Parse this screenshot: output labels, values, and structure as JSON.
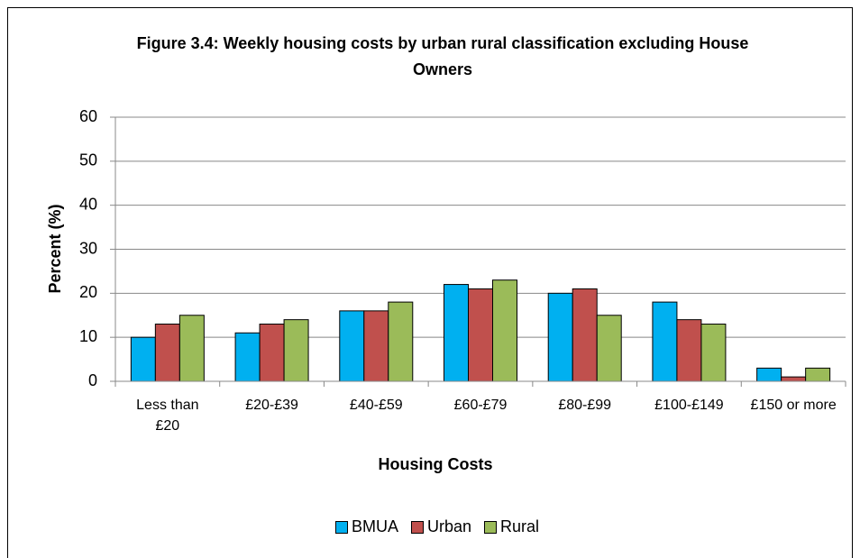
{
  "chart_data": {
    "type": "bar",
    "title": "Figure 3.4:  Weekly housing costs by urban rural classification excluding House Owners",
    "x_label": "Housing Costs",
    "y_label": "Percent (%)",
    "categories": [
      "Less than £20",
      "£20-£39",
      "£40-£59",
      "£60-£79",
      "£80-£99",
      "£100-£149",
      "£150 or more"
    ],
    "series": [
      {
        "name": "BMUA",
        "color": "#00b0f0",
        "values": [
          10,
          11,
          16,
          22,
          20,
          18,
          3
        ]
      },
      {
        "name": "Urban",
        "color": "#c0504d",
        "values": [
          13,
          13,
          16,
          21,
          21,
          14,
          1
        ]
      },
      {
        "name": "Rural",
        "color": "#9bbb59",
        "values": [
          15,
          14,
          18,
          23,
          15,
          13,
          3
        ]
      }
    ],
    "ylim": [
      0,
      60
    ],
    "yticks": [
      0,
      10,
      20,
      30,
      40,
      50,
      60
    ],
    "grid": true,
    "legend": "bottom"
  }
}
